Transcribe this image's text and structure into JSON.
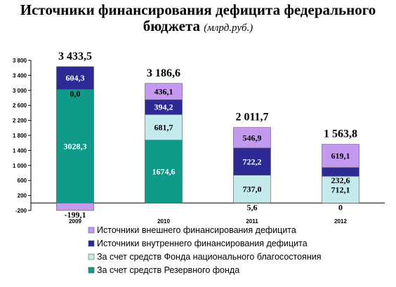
{
  "chart_data": {
    "type": "bar",
    "stacked": true,
    "title": "Источники финансирования дефицита федерального бюджета",
    "unit": "(млрд.руб.)",
    "categories": [
      "2009",
      "2010",
      "2011",
      "2012"
    ],
    "ylim": [
      -200,
      3800
    ],
    "yticks": [
      "-200",
      "200",
      "600",
      "1 000",
      "1 400",
      "1 800",
      "2 200",
      "2 600",
      "3 000",
      "3 400",
      "3 800"
    ],
    "ytick_values": [
      -200,
      200,
      600,
      1000,
      1400,
      1800,
      2200,
      2600,
      3000,
      3400,
      3800
    ],
    "totals": [
      "3 433,5",
      "3 186,6",
      "2 011,7",
      "1 563,8"
    ],
    "series": [
      {
        "name": "За счет средств Резервного фонда",
        "color": "#0f9a8a",
        "values": [
          3028.3,
          1674.6,
          5.6,
          0
        ],
        "labels": [
          "3028,3",
          "1674,6",
          "5,6",
          "0"
        ]
      },
      {
        "name": "За счет средств Фонда национального благосостояния",
        "color": "#c4eaee",
        "values": [
          0.0,
          681.7,
          737.0,
          712.1
        ],
        "labels": [
          "0,0",
          "681,7",
          "737,0",
          "712,1"
        ]
      },
      {
        "name": "Источники внутреннего финансирования дефицита",
        "color": "#2d2a95",
        "values": [
          604.3,
          394.2,
          722.2,
          232.6
        ],
        "labels": [
          "604,3",
          "394,2",
          "722,2",
          "232,6"
        ]
      },
      {
        "name": "Источники внешнего финансирования дефицита",
        "color": "#c39af0",
        "values": [
          -199.1,
          436.1,
          546.9,
          619.1
        ],
        "labels": [
          "-199,1",
          "436,1",
          "546,9",
          "619,1"
        ]
      }
    ],
    "legend_order": [
      3,
      2,
      1,
      0
    ],
    "grid": false,
    "legend_position": "bottom"
  }
}
